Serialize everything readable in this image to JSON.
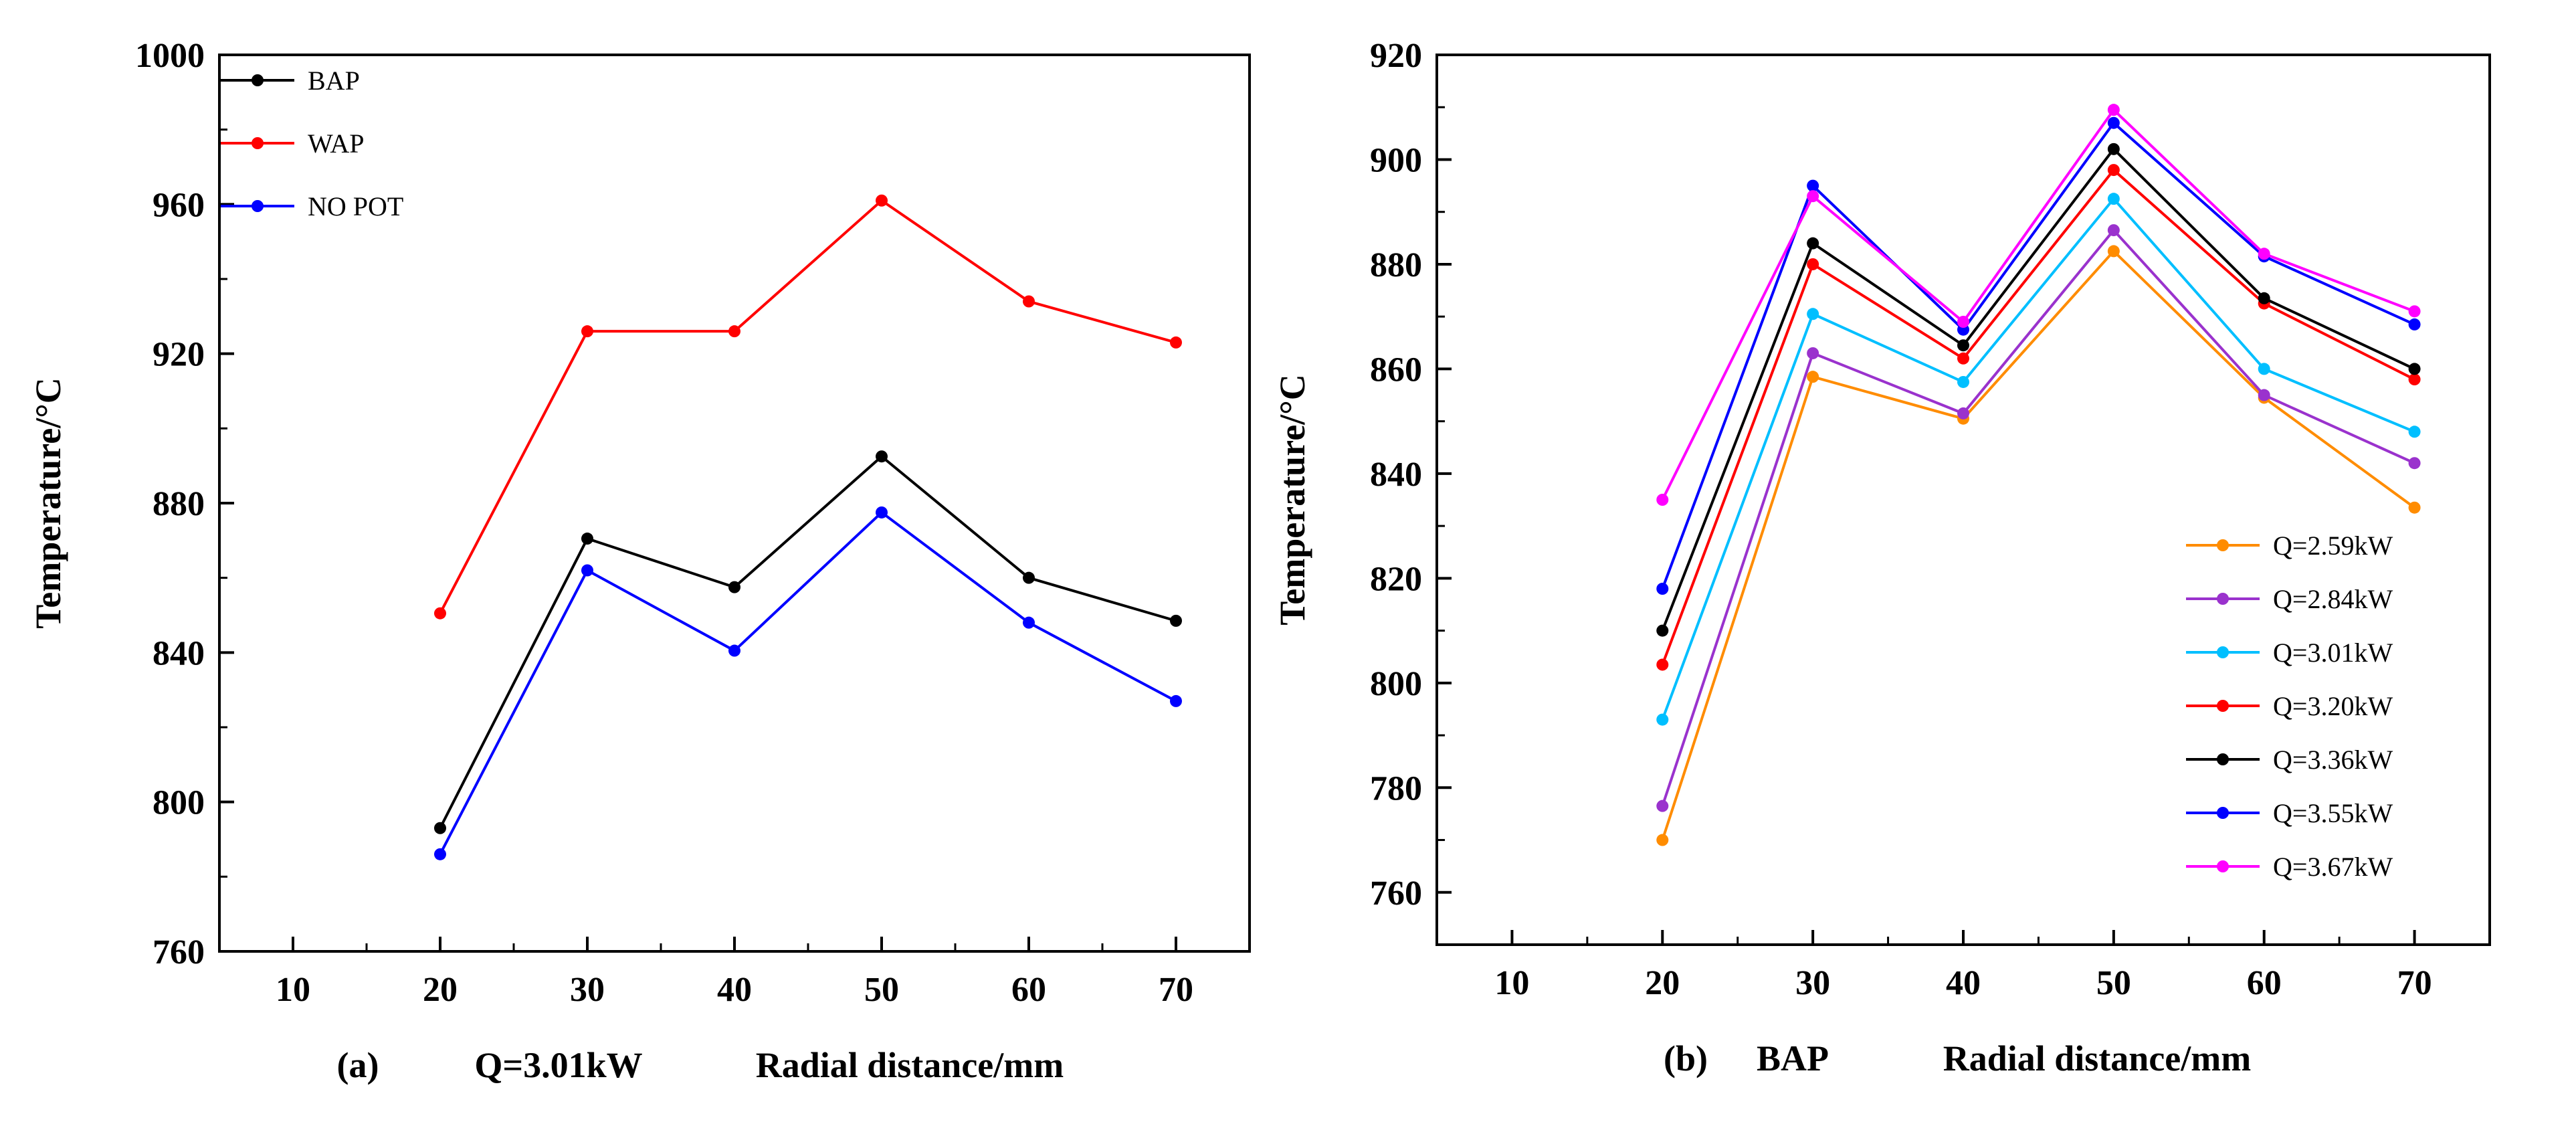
{
  "chart_data": [
    {
      "type": "line",
      "panel_label": "(a)",
      "condition": "Q=3.01kW",
      "xlabel": "Radial distance/mm",
      "ylabel": "Temperature/°C",
      "x": [
        20,
        30,
        40,
        50,
        60,
        70
      ],
      "xlim": [
        5,
        75
      ],
      "ylim": [
        760,
        1000
      ],
      "xticks": [
        "10",
        "20",
        "30",
        "40",
        "50",
        "60",
        "70"
      ],
      "yticks": [
        "760",
        "800",
        "840",
        "880",
        "920",
        "960",
        "1000"
      ],
      "legend_position": "top-left",
      "grid": false,
      "series": [
        {
          "name": "BAP",
          "color": "#000000",
          "values": [
            793,
            870.5,
            857.5,
            892.5,
            860,
            848.5
          ]
        },
        {
          "name": "WAP",
          "color": "#ff0000",
          "values": [
            850.5,
            926,
            926,
            961,
            934,
            923
          ]
        },
        {
          "name": "NO POT",
          "color": "#0000ff",
          "values": [
            786,
            862,
            840.5,
            877.5,
            848,
            827
          ]
        }
      ]
    },
    {
      "type": "line",
      "panel_label": "(b)",
      "condition": "BAP",
      "xlabel": "Radial distance/mm",
      "ylabel": "Temperature/°C",
      "x": [
        20,
        30,
        40,
        50,
        60,
        70
      ],
      "xlim": [
        5,
        75
      ],
      "ylim": [
        750,
        920
      ],
      "xticks": [
        "10",
        "20",
        "30",
        "40",
        "50",
        "60",
        "70"
      ],
      "yticks": [
        "760",
        "780",
        "800",
        "820",
        "840",
        "860",
        "880",
        "900",
        "920"
      ],
      "legend_position": "bottom-right",
      "grid": false,
      "series": [
        {
          "name": "Q=2.59kW",
          "color": "#ff8c00",
          "values": [
            770,
            858.5,
            850.5,
            882.5,
            854.5,
            833.5
          ]
        },
        {
          "name": "Q=2.84kW",
          "color": "#9a32cd",
          "values": [
            776.5,
            863,
            851.5,
            886.5,
            855,
            842
          ]
        },
        {
          "name": "Q=3.01kW",
          "color": "#00bfff",
          "values": [
            793,
            870.5,
            857.5,
            892.5,
            860,
            848
          ]
        },
        {
          "name": "Q=3.20kW",
          "color": "#ff0000",
          "values": [
            803.5,
            880,
            862,
            898,
            872.5,
            858
          ]
        },
        {
          "name": "Q=3.36kW",
          "color": "#000000",
          "values": [
            810,
            884,
            864.5,
            902,
            873.5,
            860
          ]
        },
        {
          "name": "Q=3.55kW",
          "color": "#0000ff",
          "values": [
            818,
            895,
            867.5,
            907,
            881.5,
            868.5
          ]
        },
        {
          "name": "Q=3.67kW",
          "color": "#ff00ff",
          "values": [
            835,
            893,
            869,
            909.5,
            882,
            871
          ]
        }
      ]
    }
  ]
}
